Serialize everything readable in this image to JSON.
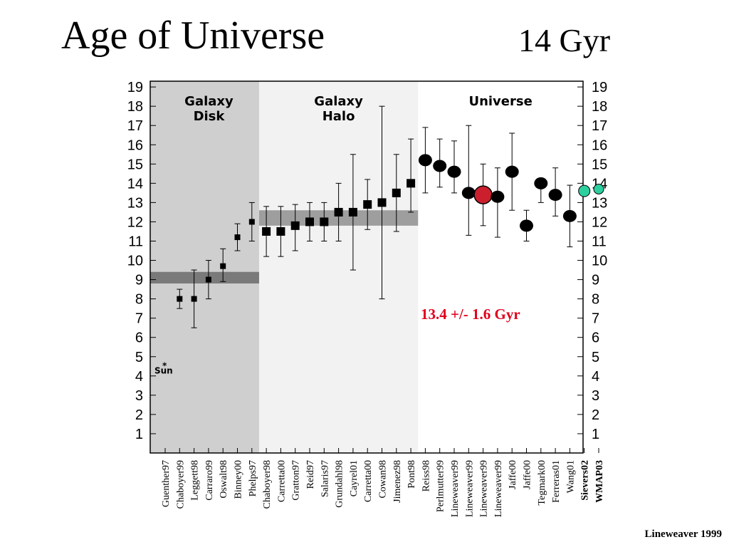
{
  "slide": {
    "title": "Age of Universe",
    "subtitle": "14 Gyr",
    "credit": "Lineweaver 1999"
  },
  "colors": {
    "disk_region": "#cfcfcf",
    "halo_region": "#f2f2f2",
    "disk_band": "#7a7a7a",
    "halo_band": "#9e9e9e",
    "highlight_marker": "#cc1f2e",
    "recent_marker": "#2ecf9f",
    "annotation": "#e0001b"
  },
  "chart_data": {
    "type": "scatter",
    "ylim": [
      0,
      19
    ],
    "y_ticks": [
      "1",
      "2",
      "3",
      "4",
      "5",
      "6",
      "7",
      "8",
      "9",
      "10",
      "11",
      "12",
      "13",
      "14",
      "15",
      "16",
      "17",
      "18",
      "19"
    ],
    "grid": false,
    "regions": [
      {
        "label_lines": [
          "Galaxy",
          "Disk"
        ],
        "from_index": 0,
        "to_index": 6
      },
      {
        "label_lines": [
          "Galaxy",
          "Halo"
        ],
        "from_index": 7,
        "to_index": 17
      },
      {
        "label_lines": [
          "Universe"
        ],
        "from_index": 18,
        "to_index": 29
      }
    ],
    "bands": [
      {
        "region": "disk",
        "y_low": 8.8,
        "y_high": 9.4
      },
      {
        "region": "halo",
        "y_low": 11.8,
        "y_high": 12.6
      }
    ],
    "sun": {
      "label": "Sun",
      "age": 4.6
    },
    "annotation": "13.4 +/- 1.6 Gyr",
    "points": [
      {
        "label": "Guenther97",
        "y": null,
        "err_low": null,
        "err_high": null,
        "marker": "none"
      },
      {
        "label": "Chaboyer99",
        "y": 8.0,
        "err_low": 7.5,
        "err_high": 8.5,
        "marker": "square-small"
      },
      {
        "label": "Leggett98",
        "y": 8.0,
        "err_low": 6.5,
        "err_high": 9.5,
        "marker": "square-small"
      },
      {
        "label": "Carraro99",
        "y": 9.0,
        "err_low": 8.0,
        "err_high": 10.0,
        "marker": "square-small"
      },
      {
        "label": "Oswalt98",
        "y": 9.7,
        "err_low": 8.9,
        "err_high": 10.6,
        "marker": "square-small"
      },
      {
        "label": "Binney00",
        "y": 11.2,
        "err_low": 10.5,
        "err_high": 11.9,
        "marker": "square-small"
      },
      {
        "label": "Phelps97",
        "y": 12.0,
        "err_low": 11.0,
        "err_high": 13.0,
        "marker": "square-small"
      },
      {
        "label": "Chaboyer98",
        "y": 11.5,
        "err_low": 10.2,
        "err_high": 12.8,
        "marker": "square"
      },
      {
        "label": "Carretta00",
        "y": 11.5,
        "err_low": 10.2,
        "err_high": 12.8,
        "marker": "square"
      },
      {
        "label": "Gratton97",
        "y": 11.8,
        "err_low": 10.5,
        "err_high": 12.9,
        "marker": "square"
      },
      {
        "label": "Reid97",
        "y": 12.0,
        "err_low": 11.0,
        "err_high": 13.0,
        "marker": "square"
      },
      {
        "label": "Salaris97",
        "y": 12.0,
        "err_low": 11.0,
        "err_high": 13.0,
        "marker": "square"
      },
      {
        "label": "Grundahl98",
        "y": 12.5,
        "err_low": 11.0,
        "err_high": 14.0,
        "marker": "square"
      },
      {
        "label": "Cayrel01",
        "y": 12.5,
        "err_low": 9.5,
        "err_high": 15.5,
        "marker": "square"
      },
      {
        "label": "Carretta00",
        "y": 12.9,
        "err_low": 11.6,
        "err_high": 14.2,
        "marker": "square"
      },
      {
        "label": "Cowan98",
        "y": 13.0,
        "err_low": 8.0,
        "err_high": 18.0,
        "marker": "square"
      },
      {
        "label": "Jimenez98",
        "y": 13.5,
        "err_low": 11.5,
        "err_high": 15.5,
        "marker": "square"
      },
      {
        "label": "Pont98",
        "y": 14.0,
        "err_low": 12.5,
        "err_high": 16.3,
        "marker": "square"
      },
      {
        "label": "Reiss98",
        "y": 15.2,
        "err_low": 13.5,
        "err_high": 16.9,
        "marker": "ellipse"
      },
      {
        "label": "Perlmutter99",
        "y": 14.9,
        "err_low": 13.8,
        "err_high": 16.3,
        "marker": "ellipse"
      },
      {
        "label": "Lineweaver99",
        "y": 14.6,
        "err_low": 13.5,
        "err_high": 16.2,
        "marker": "ellipse"
      },
      {
        "label": "Lineweaver99",
        "y": 13.5,
        "err_low": 11.3,
        "err_high": 17.0,
        "marker": "ellipse"
      },
      {
        "label": "Lineweaver99",
        "y": 13.4,
        "err_low": 11.8,
        "err_high": 15.0,
        "marker": "highlight"
      },
      {
        "label": "Lineweaver99",
        "y": 13.3,
        "err_low": 11.2,
        "err_high": 14.8,
        "marker": "ellipse"
      },
      {
        "label": "Jaffe00",
        "y": 14.6,
        "err_low": 12.6,
        "err_high": 16.6,
        "marker": "ellipse"
      },
      {
        "label": "Jaffe00",
        "y": 11.8,
        "err_low": 11.0,
        "err_high": 12.6,
        "marker": "ellipse"
      },
      {
        "label": "Tegmark00",
        "y": 14.0,
        "err_low": 13.0,
        "err_high": 14.0,
        "marker": "ellipse"
      },
      {
        "label": "Ferreras01",
        "y": 13.4,
        "err_low": 12.3,
        "err_high": 14.8,
        "marker": "ellipse"
      },
      {
        "label": "Wang01",
        "y": 12.3,
        "err_low": 10.7,
        "err_high": 13.9,
        "marker": "ellipse"
      },
      {
        "label": "Sievers02",
        "y": 13.6,
        "err_low": null,
        "err_high": null,
        "marker": "recent",
        "bold_label": true
      },
      {
        "label": "WMAP03",
        "y": 13.7,
        "err_low": null,
        "err_high": null,
        "marker": "recent",
        "bold_label": true
      }
    ]
  }
}
